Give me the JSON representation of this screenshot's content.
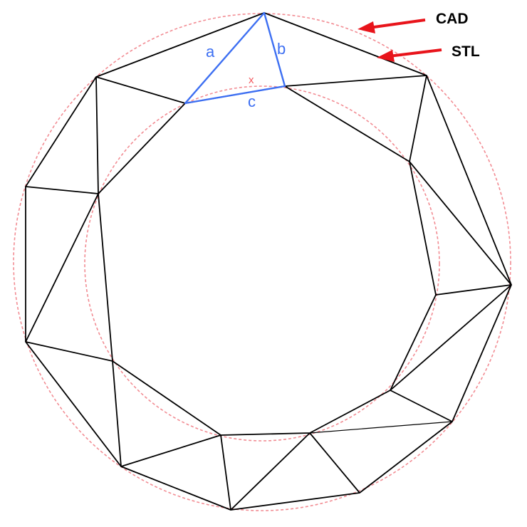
{
  "labels": {
    "edge_a": "a",
    "edge_b": "b",
    "edge_c": "c",
    "marker": "x",
    "cad": "CAD",
    "stl": "STL"
  },
  "colors": {
    "background": "#ffffff",
    "mesh_edge": "#000000",
    "highlight_triangle": "#3d6ff2",
    "reference_circle": "#f28c93",
    "arrow": "#e8141b"
  }
}
